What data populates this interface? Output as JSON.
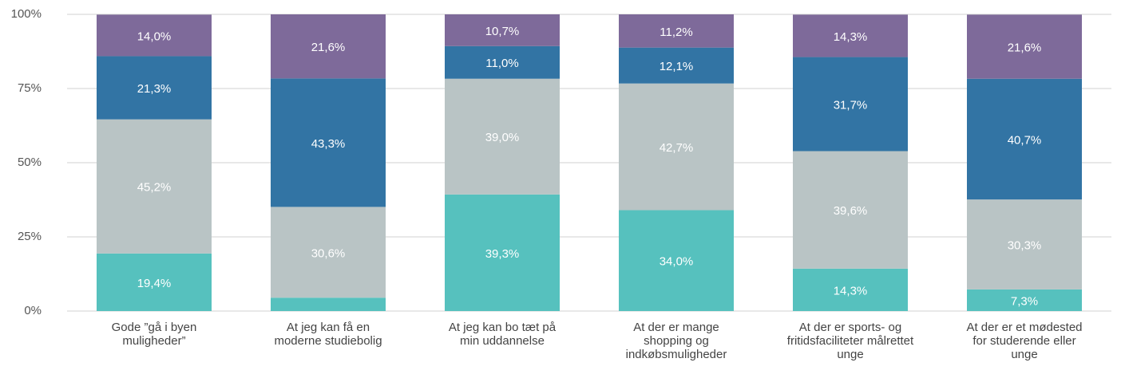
{
  "chart_data": {
    "type": "stacked_bar",
    "categories": [
      "Gode ”gå i byen muligheder”",
      "At jeg kan få en moderne studiebolig",
      "At jeg kan bo tæt på min uddannelse",
      "At der er mange shopping og indkøbsmuligheder",
      "At der er sports- og fritidsfaciliteter målrettet unge",
      "At der er et mødested for studerende eller unge"
    ],
    "series": [
      {
        "color": "#56c1be",
        "values": [
          19.4,
          4.5,
          39.3,
          34.0,
          14.3,
          7.3
        ],
        "value_labels": [
          "19,4%",
          null,
          "39,3%",
          "34,0%",
          "14,3%",
          "7,3%"
        ]
      },
      {
        "color": "#b9c4c5",
        "values": [
          45.2,
          30.6,
          39.0,
          42.7,
          39.6,
          30.3
        ],
        "value_labels": [
          "45,2%",
          "30,6%",
          "39,0%",
          "42,7%",
          "39,6%",
          "30,3%"
        ]
      },
      {
        "color": "#3274a4",
        "values": [
          21.3,
          43.3,
          11.0,
          12.1,
          31.7,
          40.7
        ],
        "value_labels": [
          "21,3%",
          "43,3%",
          "11,0%",
          "12,1%",
          "31,7%",
          "40,7%"
        ]
      },
      {
        "color": "#7e6a9a",
        "values": [
          14.0,
          21.6,
          10.7,
          11.2,
          14.3,
          21.6
        ],
        "value_labels": [
          "14,0%",
          "21,6%",
          "10,7%",
          "11,2%",
          "14,3%",
          "21,6%"
        ]
      }
    ],
    "ylim": [
      0,
      100
    ],
    "yticks": [
      {
        "value": 0,
        "label": "0%"
      },
      {
        "value": 25,
        "label": "25%"
      },
      {
        "value": 50,
        "label": "50%"
      },
      {
        "value": 75,
        "label": "75%"
      },
      {
        "value": 100,
        "label": "100%"
      }
    ],
    "grid": true
  }
}
